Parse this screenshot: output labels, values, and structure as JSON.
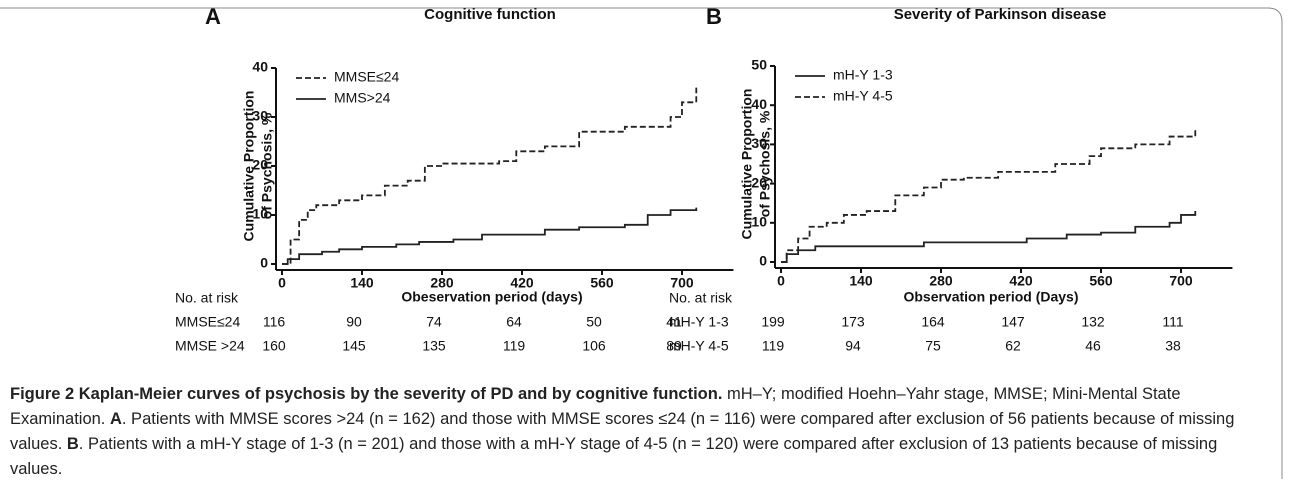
{
  "chart_data": [
    {
      "type": "step",
      "panel": "A",
      "title": "Cognitive function",
      "y_label": [
        "Cumulative Proportion",
        "of Psychosis, %"
      ],
      "x_label": "Obeservation period (days)",
      "xlim": [
        0,
        790
      ],
      "xticks": [
        0,
        140,
        280,
        420,
        560,
        700
      ],
      "ylim": [
        0,
        40
      ],
      "yticks": [
        0,
        10,
        20,
        30,
        40
      ],
      "legend": "top-left",
      "series": [
        {
          "name": "MMSE≤24",
          "color": "#222222",
          "line_style": "dashed",
          "x": [
            0,
            15,
            30,
            45,
            60,
            100,
            140,
            180,
            220,
            250,
            280,
            380,
            410,
            460,
            520,
            600,
            680,
            700,
            725
          ],
          "values": [
            0,
            5,
            9,
            11,
            12,
            13,
            14,
            16,
            17,
            20,
            20.5,
            21,
            23,
            24,
            27,
            28,
            30,
            33,
            36
          ]
        },
        {
          "name": "MMS>24",
          "color": "#222222",
          "line_style": "solid",
          "x": [
            0,
            10,
            30,
            70,
            100,
            140,
            200,
            240,
            300,
            350,
            460,
            520,
            600,
            640,
            680,
            725
          ],
          "values": [
            0,
            1,
            2,
            2.5,
            3,
            3.5,
            4,
            4.5,
            5,
            6,
            7,
            7.5,
            8,
            10,
            11,
            11.5
          ]
        }
      ],
      "risk_table": {
        "title": "No. at risk",
        "rows": [
          {
            "label": "MMSE≤24",
            "values": [
              116,
              90,
              74,
              64,
              50,
              41
            ]
          },
          {
            "label": "MMSE >24",
            "values": [
              160,
              145,
              135,
              119,
              106,
              89
            ]
          }
        ]
      }
    },
    {
      "type": "step",
      "panel": "B",
      "title": "Severity of Parkinson disease",
      "y_label": [
        "Cumulative Proportion",
        "of Psychosis, %"
      ],
      "x_label": "Observation period (Days)",
      "xlim": [
        0,
        790
      ],
      "xticks": [
        0,
        140,
        280,
        420,
        560,
        700
      ],
      "ylim": [
        0,
        50
      ],
      "yticks": [
        0,
        10,
        20,
        30,
        40,
        50
      ],
      "legend": "top-left",
      "series": [
        {
          "name": "mH-Y 1-3",
          "color": "#222222",
          "line_style": "solid",
          "x": [
            0,
            10,
            30,
            60,
            250,
            430,
            500,
            560,
            620,
            680,
            700,
            725
          ],
          "values": [
            0,
            2,
            3,
            4,
            5,
            6,
            7,
            7.5,
            9,
            10,
            12,
            13
          ]
        },
        {
          "name": "mH-Y 4-5",
          "color": "#222222",
          "line_style": "dashed",
          "x": [
            0,
            10,
            30,
            50,
            80,
            110,
            150,
            200,
            250,
            280,
            320,
            380,
            480,
            540,
            560,
            620,
            680,
            725
          ],
          "values": [
            0,
            3,
            6,
            9,
            10,
            12,
            13,
            17,
            19,
            21,
            21.5,
            23,
            25,
            27,
            29,
            30,
            32,
            34
          ]
        }
      ],
      "risk_table": {
        "title": "No. at risk",
        "rows": [
          {
            "label": "mH-Y 1-3",
            "values": [
              199,
              173,
              164,
              147,
              132,
              111
            ]
          },
          {
            "label": "mH-Y 4-5",
            "values": [
              119,
              94,
              75,
              62,
              46,
              38
            ]
          }
        ]
      }
    }
  ],
  "caption": [
    {
      "text": "Figure 2 Kaplan-Meier curves of psychosis by the severity of PD and by cognitive function.",
      "bold": true
    },
    {
      "text": " mH–Y; modified Hoehn–Yahr stage, MMSE; Mini-Mental State Examination. ",
      "bold": false
    },
    {
      "text": "A",
      "bold": true
    },
    {
      "text": ". Patients with MMSE scores >24 (n = 162) and those with MMSE scores ≤24 (n = 116) were compared after exclusion of 56 patients because of missing values. ",
      "bold": false
    },
    {
      "text": "B",
      "bold": true
    },
    {
      "text": ". Patients with a mH-Y stage of 1-3 (n = 201) and those with a mH-Y stage of 4-5 (n = 120) were compared after exclusion of 13 patients because of missing values.",
      "bold": false
    }
  ]
}
